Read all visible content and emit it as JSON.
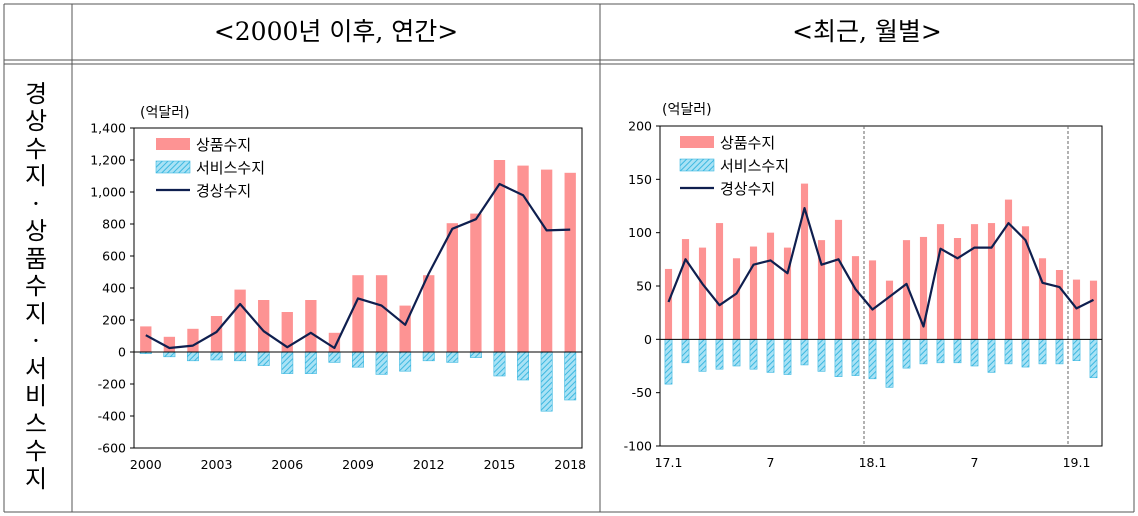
{
  "header": {
    "left_title": "<2000년 이후, 연간>",
    "right_title": "<최근, 월별>"
  },
  "row_label": [
    "경",
    "상",
    "수",
    "지",
    "·",
    "상",
    "품",
    "수",
    "지",
    "·",
    "서",
    "비",
    "스",
    "수",
    "지"
  ],
  "colors": {
    "goods": "#fd9393",
    "services_stroke": "#3db8e0",
    "services_fill": "#a9e2f5",
    "current": "#0f1f4f",
    "axis": "#000000",
    "border": "#555555"
  },
  "chart_data": [
    {
      "type": "bar",
      "title": "<2000년 이후, 연간>",
      "unit_label": "(억달러)",
      "ylim": [
        -600,
        1400
      ],
      "yticks": [
        "-600",
        "-400",
        "-200",
        "0",
        "200",
        "400",
        "600",
        "800",
        "1,000",
        "1,200",
        "1,400"
      ],
      "ytick_values": [
        -600,
        -400,
        -200,
        0,
        200,
        400,
        600,
        800,
        1000,
        1200,
        1400
      ],
      "categories": [
        "2000",
        "2001",
        "2002",
        "2003",
        "2004",
        "2005",
        "2006",
        "2007",
        "2008",
        "2009",
        "2010",
        "2011",
        "2012",
        "2013",
        "2014",
        "2015",
        "2016",
        "2017",
        "2018"
      ],
      "xtick_labels": [
        "2000",
        "",
        "",
        "2003",
        "",
        "",
        "2006",
        "",
        "",
        "2009",
        "",
        "",
        "2012",
        "",
        "",
        "2015",
        "",
        "",
        "2018"
      ],
      "legend": [
        "상품수지",
        "서비스수지",
        "경상수지"
      ],
      "series": [
        {
          "name": "상품수지",
          "kind": "bar",
          "values": [
            160,
            95,
            145,
            225,
            390,
            325,
            250,
            325,
            120,
            480,
            480,
            290,
            480,
            805,
            865,
            1200,
            1165,
            1140,
            1120
          ]
        },
        {
          "name": "서비스수지",
          "kind": "bar-hatched",
          "values": [
            -10,
            -30,
            -55,
            -50,
            -55,
            -85,
            -135,
            -135,
            -65,
            -95,
            -140,
            -120,
            -55,
            -65,
            -35,
            -150,
            -175,
            -370,
            -300
          ]
        },
        {
          "name": "경상수지",
          "kind": "line",
          "values": [
            105,
            25,
            40,
            125,
            300,
            130,
            30,
            120,
            25,
            335,
            290,
            170,
            490,
            770,
            830,
            1050,
            980,
            760,
            765
          ]
        }
      ]
    },
    {
      "type": "bar",
      "title": "<최근, 월별>",
      "unit_label": "(억달러)",
      "ylim": [
        -100,
        200
      ],
      "yticks": [
        "-100",
        "-50",
        "0",
        "50",
        "100",
        "150",
        "200"
      ],
      "ytick_values": [
        -100,
        -50,
        0,
        50,
        100,
        150,
        200
      ],
      "categories": [
        "17.1",
        "17.2",
        "17.3",
        "17.4",
        "17.5",
        "17.6",
        "17.7",
        "17.8",
        "17.9",
        "17.10",
        "17.11",
        "17.12",
        "18.1",
        "18.2",
        "18.3",
        "18.4",
        "18.5",
        "18.6",
        "18.7",
        "18.8",
        "18.9",
        "18.10",
        "18.11",
        "18.12",
        "19.1",
        "19.2"
      ],
      "xtick_labels": [
        "17.1",
        "",
        "",
        "",
        "",
        "",
        "7",
        "",
        "",
        "",
        "",
        "",
        "18.1",
        "",
        "",
        "",
        "",
        "",
        "7",
        "",
        "",
        "",
        "",
        "",
        "19.1",
        ""
      ],
      "year_dividers_after": [
        "17.12",
        "18.12"
      ],
      "legend": [
        "상품수지",
        "서비스수지",
        "경상수지"
      ],
      "series": [
        {
          "name": "상품수지",
          "kind": "bar",
          "values": [
            66,
            94,
            86,
            109,
            76,
            87,
            100,
            86,
            146,
            93,
            112,
            78,
            74,
            55,
            93,
            96,
            108,
            95,
            108,
            109,
            131,
            106,
            76,
            65,
            56,
            55
          ]
        },
        {
          "name": "서비스수지",
          "kind": "bar-hatched",
          "values": [
            -42,
            -22,
            -30,
            -28,
            -25,
            -28,
            -31,
            -33,
            -24,
            -30,
            -35,
            -34,
            -37,
            -45,
            -27,
            -23,
            -22,
            -22,
            -25,
            -31,
            -23,
            -26,
            -23,
            -23,
            -20,
            -36
          ]
        },
        {
          "name": "경상수지",
          "kind": "line",
          "values": [
            35,
            75,
            52,
            32,
            43,
            70,
            74,
            62,
            123,
            70,
            75,
            47,
            28,
            40,
            52,
            12,
            85,
            76,
            86,
            86,
            109,
            93,
            53,
            49,
            29,
            37
          ]
        }
      ]
    }
  ]
}
